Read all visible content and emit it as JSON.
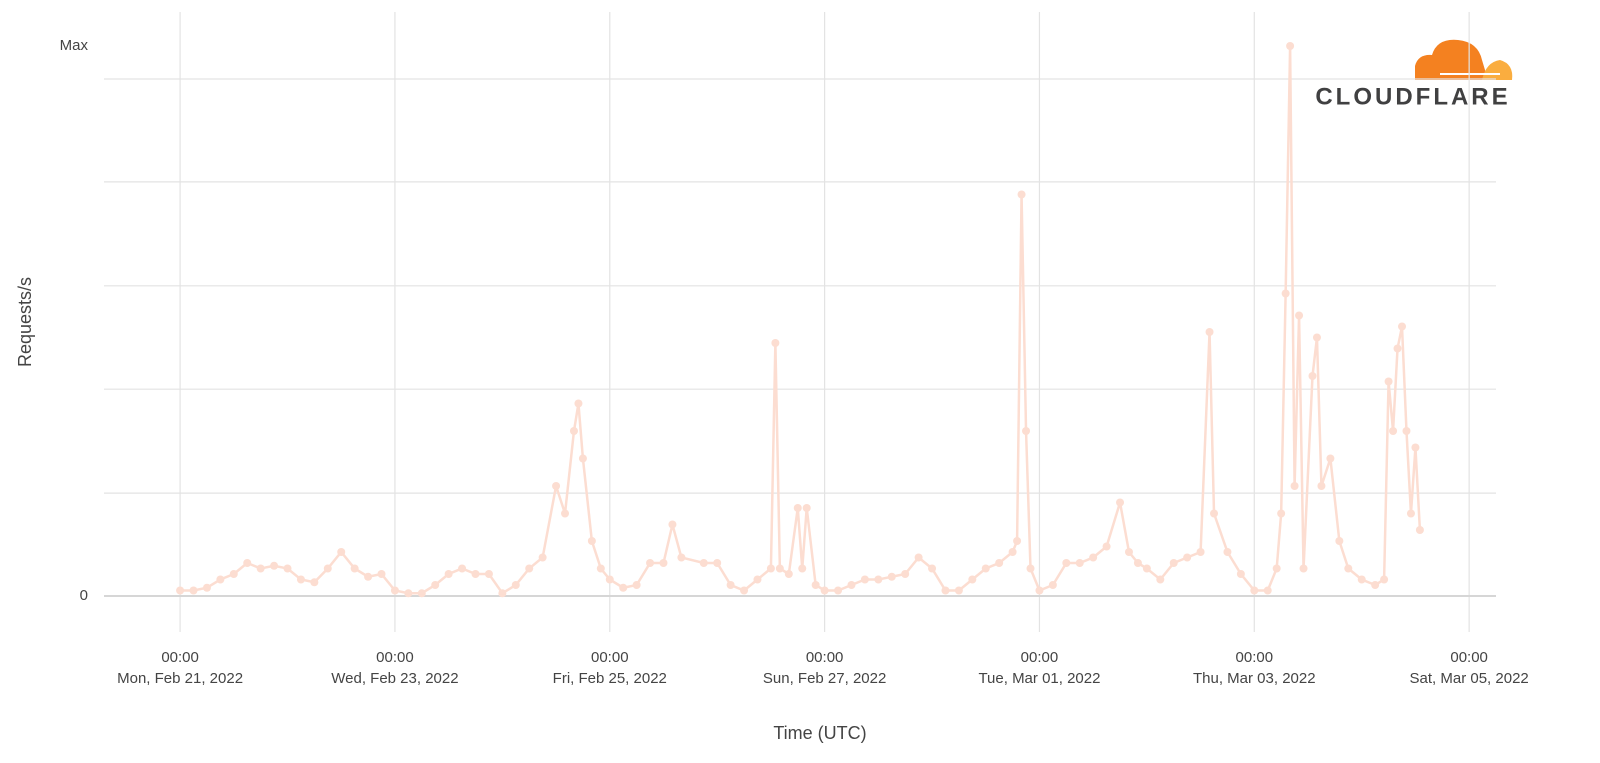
{
  "chart_data": {
    "type": "line",
    "y_label": "Requests/s",
    "x_label": "Time (UTC)",
    "logo_text": "CLOUDFLARE",
    "color": "#fcddd1",
    "grid": true,
    "ylim": [
      0,
      1
    ],
    "yticks": [
      0,
      {
        "value": 1,
        "label": "Max"
      }
    ],
    "ygrid": [
      0.187,
      0.376,
      0.564,
      0.753,
      0.94
    ],
    "xlim": [
      "2022-02-20T07:00",
      "2022-03-05T06:00"
    ],
    "xticks": [
      {
        "value": "2022-02-21T00:00",
        "label": [
          "00:00",
          "Mon, Feb 21, 2022"
        ]
      },
      {
        "value": "2022-02-23T00:00",
        "label": [
          "00:00",
          "Wed, Feb 23, 2022"
        ]
      },
      {
        "value": "2022-02-25T00:00",
        "label": [
          "00:00",
          "Fri, Feb 25, 2022"
        ]
      },
      {
        "value": "2022-02-27T00:00",
        "label": [
          "00:00",
          "Sun, Feb 27, 2022"
        ]
      },
      {
        "value": "2022-03-01T00:00",
        "label": [
          "00:00",
          "Tue, Mar 01, 2022"
        ]
      },
      {
        "value": "2022-03-03T00:00",
        "label": [
          "00:00",
          "Thu, Mar 03, 2022"
        ]
      },
      {
        "value": "2022-03-05T00:00",
        "label": [
          "00:00",
          "Sat, Mar 05, 2022"
        ]
      }
    ],
    "x": [
      "2022-02-21T00:00",
      "2022-02-21T03:00",
      "2022-02-21T06:00",
      "2022-02-21T09:00",
      "2022-02-21T12:00",
      "2022-02-21T15:00",
      "2022-02-21T18:00",
      "2022-02-21T21:00",
      "2022-02-22T00:00",
      "2022-02-22T03:00",
      "2022-02-22T06:00",
      "2022-02-22T09:00",
      "2022-02-22T12:00",
      "2022-02-22T15:00",
      "2022-02-22T18:00",
      "2022-02-22T21:00",
      "2022-02-23T00:00",
      "2022-02-23T03:00",
      "2022-02-23T06:00",
      "2022-02-23T09:00",
      "2022-02-23T12:00",
      "2022-02-23T15:00",
      "2022-02-23T18:00",
      "2022-02-23T21:00",
      "2022-02-24T00:00",
      "2022-02-24T03:00",
      "2022-02-24T06:00",
      "2022-02-24T09:00",
      "2022-02-24T12:00",
      "2022-02-24T14:00",
      "2022-02-24T16:00",
      "2022-02-24T17:00",
      "2022-02-24T18:00",
      "2022-02-24T20:00",
      "2022-02-24T22:00",
      "2022-02-25T00:00",
      "2022-02-25T03:00",
      "2022-02-25T06:00",
      "2022-02-25T09:00",
      "2022-02-25T12:00",
      "2022-02-25T14:00",
      "2022-02-25T16:00",
      "2022-02-25T21:00",
      "2022-02-26T00:00",
      "2022-02-26T03:00",
      "2022-02-26T06:00",
      "2022-02-26T09:00",
      "2022-02-26T12:00",
      "2022-02-26T13:00",
      "2022-02-26T14:00",
      "2022-02-26T16:00",
      "2022-02-26T18:00",
      "2022-02-26T19:00",
      "2022-02-26T20:00",
      "2022-02-26T22:00",
      "2022-02-27T00:00",
      "2022-02-27T03:00",
      "2022-02-27T06:00",
      "2022-02-27T09:00",
      "2022-02-27T12:00",
      "2022-02-27T15:00",
      "2022-02-27T18:00",
      "2022-02-27T21:00",
      "2022-02-28T00:00",
      "2022-02-28T03:00",
      "2022-02-28T06:00",
      "2022-02-28T09:00",
      "2022-02-28T12:00",
      "2022-02-28T15:00",
      "2022-02-28T18:00",
      "2022-02-28T19:00",
      "2022-02-28T20:00",
      "2022-02-28T21:00",
      "2022-02-28T22:00",
      "2022-03-01T00:00",
      "2022-03-01T03:00",
      "2022-03-01T06:00",
      "2022-03-01T09:00",
      "2022-03-01T12:00",
      "2022-03-01T15:00",
      "2022-03-01T18:00",
      "2022-03-01T20:00",
      "2022-03-01T22:00",
      "2022-03-02T00:00",
      "2022-03-02T03:00",
      "2022-03-02T06:00",
      "2022-03-02T09:00",
      "2022-03-02T12:00",
      "2022-03-02T14:00",
      "2022-03-02T15:00",
      "2022-03-02T18:00",
      "2022-03-02T21:00",
      "2022-03-03T00:00",
      "2022-03-03T03:00",
      "2022-03-03T05:00",
      "2022-03-03T06:00",
      "2022-03-03T07:00",
      "2022-03-03T08:00",
      "2022-03-03T09:00",
      "2022-03-03T10:00",
      "2022-03-03T11:00",
      "2022-03-03T13:00",
      "2022-03-03T14:00",
      "2022-03-03T15:00",
      "2022-03-03T17:00",
      "2022-03-03T19:00",
      "2022-03-03T21:00",
      "2022-03-04T00:00",
      "2022-03-04T03:00",
      "2022-03-04T05:00",
      "2022-03-04T06:00",
      "2022-03-04T07:00",
      "2022-03-04T08:00",
      "2022-03-04T09:00",
      "2022-03-04T10:00",
      "2022-03-04T11:00",
      "2022-03-04T12:00",
      "2022-03-04T13:00"
    ],
    "values": [
      0.01,
      0.01,
      0.015,
      0.03,
      0.04,
      0.06,
      0.05,
      0.055,
      0.05,
      0.03,
      0.025,
      0.05,
      0.08,
      0.05,
      0.035,
      0.04,
      0.01,
      0.005,
      0.005,
      0.02,
      0.04,
      0.05,
      0.04,
      0.04,
      0.005,
      0.02,
      0.05,
      0.07,
      0.2,
      0.15,
      0.3,
      0.35,
      0.25,
      0.1,
      0.05,
      0.03,
      0.015,
      0.02,
      0.06,
      0.06,
      0.13,
      0.07,
      0.06,
      0.06,
      0.02,
      0.01,
      0.03,
      0.05,
      0.46,
      0.05,
      0.04,
      0.16,
      0.05,
      0.16,
      0.02,
      0.01,
      0.01,
      0.02,
      0.03,
      0.03,
      0.035,
      0.04,
      0.07,
      0.05,
      0.01,
      0.01,
      0.03,
      0.05,
      0.06,
      0.08,
      0.1,
      0.73,
      0.3,
      0.05,
      0.01,
      0.02,
      0.06,
      0.06,
      0.07,
      0.09,
      0.17,
      0.08,
      0.06,
      0.05,
      0.03,
      0.06,
      0.07,
      0.08,
      0.48,
      0.15,
      0.08,
      0.04,
      0.01,
      0.01,
      0.05,
      0.15,
      0.55,
      1.0,
      0.2,
      0.51,
      0.05,
      0.4,
      0.47,
      0.2,
      0.25,
      0.1,
      0.05,
      0.03,
      0.02,
      0.03,
      0.39,
      0.3,
      0.45,
      0.49,
      0.3,
      0.15,
      0.27,
      0.12
    ]
  }
}
